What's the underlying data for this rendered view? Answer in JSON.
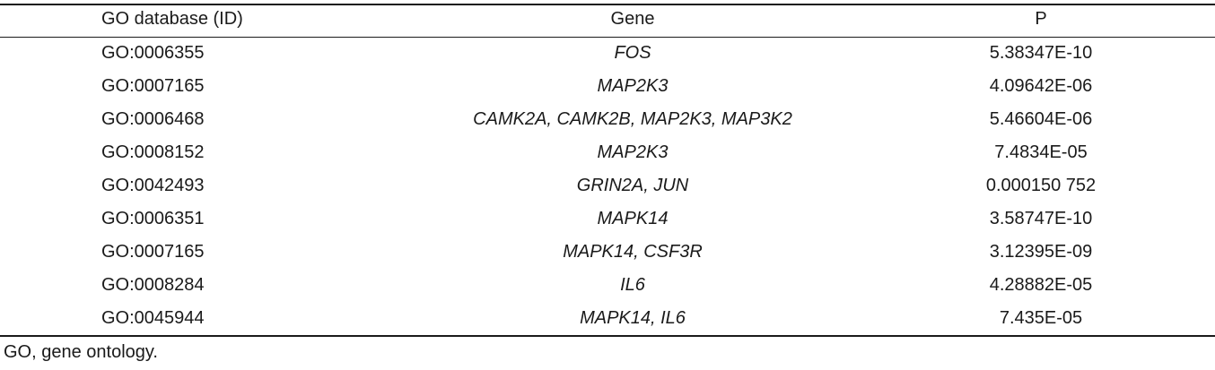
{
  "table": {
    "header": [
      "GO database (ID)",
      "Gene",
      "P"
    ],
    "rows": [
      [
        "GO:0006355",
        "FOS",
        "5.38347E-10"
      ],
      [
        "GO:0007165",
        "MAP2K3",
        "4.09642E-06"
      ],
      [
        "GO:0006468",
        "CAMK2A, CAMK2B, MAP2K3, MAP3K2",
        "5.46604E-06"
      ],
      [
        "GO:0008152",
        "MAP2K3",
        "7.4834E-05"
      ],
      [
        "GO:0042493",
        "GRIN2A, JUN",
        "0.000150 752"
      ],
      [
        "GO:0006351",
        "MAPK14",
        "3.58747E-10"
      ],
      [
        "GO:0007165",
        "MAPK14, CSF3R",
        "3.12395E-09"
      ],
      [
        "GO:0008284",
        "IL6",
        "4.28882E-05"
      ],
      [
        "GO:0045944",
        "MAPK14, IL6",
        "7.435E-05"
      ]
    ],
    "footnote": "GO, gene ontology."
  }
}
